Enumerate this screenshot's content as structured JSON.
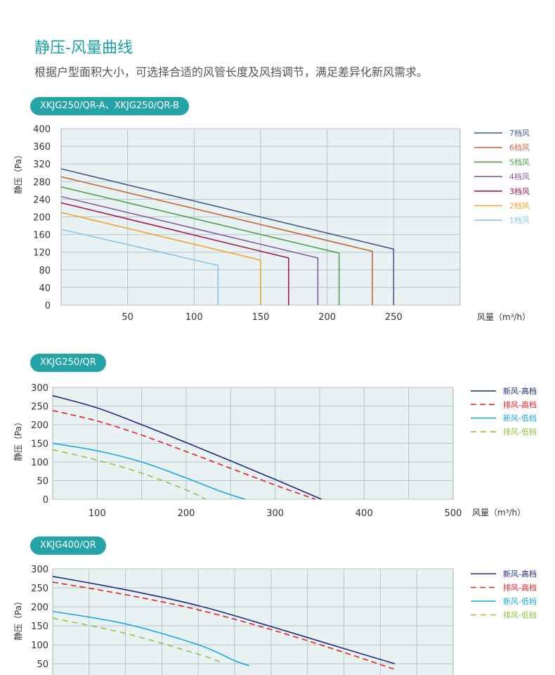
{
  "header": {
    "title": "静压-风量曲线",
    "subtitle": "根据户型面积大小，可选择合适的风管长度及风挡调节，满足差异化新风需求。"
  },
  "chart_data": [
    {
      "type": "line",
      "badge": "XKJG250/QR-A、XKJG250/QR-B",
      "ylabel": "静压（Pa）",
      "xlabel": "风量（m³/h）",
      "xlim": [
        0,
        300
      ],
      "ylim": [
        0,
        400
      ],
      "x_ticks": [
        50,
        100,
        150,
        200,
        250
      ],
      "y_ticks": [
        0,
        40,
        80,
        120,
        160,
        200,
        240,
        280,
        320,
        360,
        400
      ],
      "x_grid": [
        50,
        100,
        150,
        200,
        250
      ],
      "y_grid": [
        0,
        40,
        80,
        120,
        160,
        200,
        240,
        280,
        320,
        360,
        400
      ],
      "grid": true,
      "legend_position": "right",
      "series": [
        {
          "name": "7档风",
          "color": "#3e5a8a",
          "x": [
            0,
            250,
            250
          ],
          "y": [
            309,
            127,
            0
          ]
        },
        {
          "name": "6档风",
          "color": "#c8643a",
          "x": [
            0,
            234,
            234
          ],
          "y": [
            291,
            122,
            0
          ]
        },
        {
          "name": "5档风",
          "color": "#4e9e4a",
          "x": [
            0,
            209,
            209
          ],
          "y": [
            268,
            118,
            0
          ]
        },
        {
          "name": "4档风",
          "color": "#8a5aa8",
          "x": [
            0,
            193,
            193
          ],
          "y": [
            246,
            107,
            0
          ]
        },
        {
          "name": "3档风",
          "color": "#a11a52",
          "x": [
            0,
            171,
            171
          ],
          "y": [
            232,
            107,
            0
          ]
        },
        {
          "name": "2档风",
          "color": "#f2a22e",
          "x": [
            0,
            150,
            150
          ],
          "y": [
            210,
            102,
            0
          ]
        },
        {
          "name": "1档风",
          "color": "#8dc4e8",
          "x": [
            0,
            118,
            118
          ],
          "y": [
            172,
            90,
            0
          ]
        }
      ]
    },
    {
      "type": "line",
      "badge": "XKJG250/QR",
      "ylabel": "静压（Pa）",
      "xlabel": "风量（m³/h）",
      "xlim": [
        50,
        500
      ],
      "ylim": [
        0,
        300
      ],
      "x_ticks": [
        100,
        200,
        300,
        400,
        500
      ],
      "y_ticks": [
        0,
        50,
        100,
        150,
        200,
        250,
        300
      ],
      "x_grid": [
        100,
        150,
        200,
        250,
        300,
        350,
        400,
        450
      ],
      "y_grid": [
        0,
        50,
        100,
        150,
        200,
        250,
        300
      ],
      "grid": true,
      "legend_position": "right",
      "series": [
        {
          "name": "新风-高档",
          "color": "#1c2a80",
          "dash": "",
          "x": [
            50,
            100,
            150,
            200,
            250,
            300,
            352
          ],
          "y": [
            278,
            245,
            200,
            152,
            103,
            53,
            0
          ]
        },
        {
          "name": "排风-高档",
          "color": "#e51e25",
          "dash": "8,5",
          "x": [
            50,
            100,
            150,
            200,
            250,
            300,
            345
          ],
          "y": [
            238,
            210,
            172,
            128,
            83,
            38,
            0
          ]
        },
        {
          "name": "新风-低档",
          "color": "#1ba6e0",
          "dash": "",
          "x": [
            50,
            100,
            150,
            200,
            240,
            266
          ],
          "y": [
            150,
            130,
            100,
            57,
            20,
            0
          ]
        },
        {
          "name": "排风-低档",
          "color": "#8cc63f",
          "dash": "8,6",
          "x": [
            50,
            100,
            150,
            200,
            222
          ],
          "y": [
            133,
            105,
            70,
            25,
            0
          ]
        }
      ]
    },
    {
      "type": "line",
      "badge": "XKJG400/QR",
      "ylabel": "静压（Pa）",
      "xlabel": "",
      "xlim": [
        0,
        550
      ],
      "ylim": [
        0,
        300
      ],
      "x_ticks": [],
      "y_ticks": [
        50,
        100,
        150,
        200,
        250,
        300
      ],
      "x_grid": [
        50,
        100,
        150,
        200,
        250,
        300,
        350,
        400,
        450,
        500
      ],
      "y_grid": [
        50,
        100,
        150,
        200,
        250,
        300
      ],
      "grid": true,
      "legend_position": "right",
      "series": [
        {
          "name": "新风-高档",
          "color": "#1c2a80",
          "dash": "",
          "x": [
            0,
            100,
            200,
            300,
            400,
            470
          ],
          "y": [
            280,
            245,
            203,
            148,
            90,
            50
          ]
        },
        {
          "name": "排风-高档",
          "color": "#e51e25",
          "dash": "8,5",
          "x": [
            0,
            100,
            200,
            300,
            400,
            470
          ],
          "y": [
            265,
            232,
            192,
            140,
            80,
            35
          ]
        },
        {
          "name": "新风-低档",
          "color": "#1ba6e0",
          "dash": "",
          "x": [
            0,
            100,
            200,
            250,
            270
          ],
          "y": [
            188,
            155,
            100,
            58,
            45
          ]
        },
        {
          "name": "排风-低档",
          "color": "#8cc63f",
          "dash": "8,6",
          "x": [
            0,
            100,
            200,
            230
          ],
          "y": [
            170,
            130,
            75,
            55
          ]
        }
      ]
    }
  ]
}
